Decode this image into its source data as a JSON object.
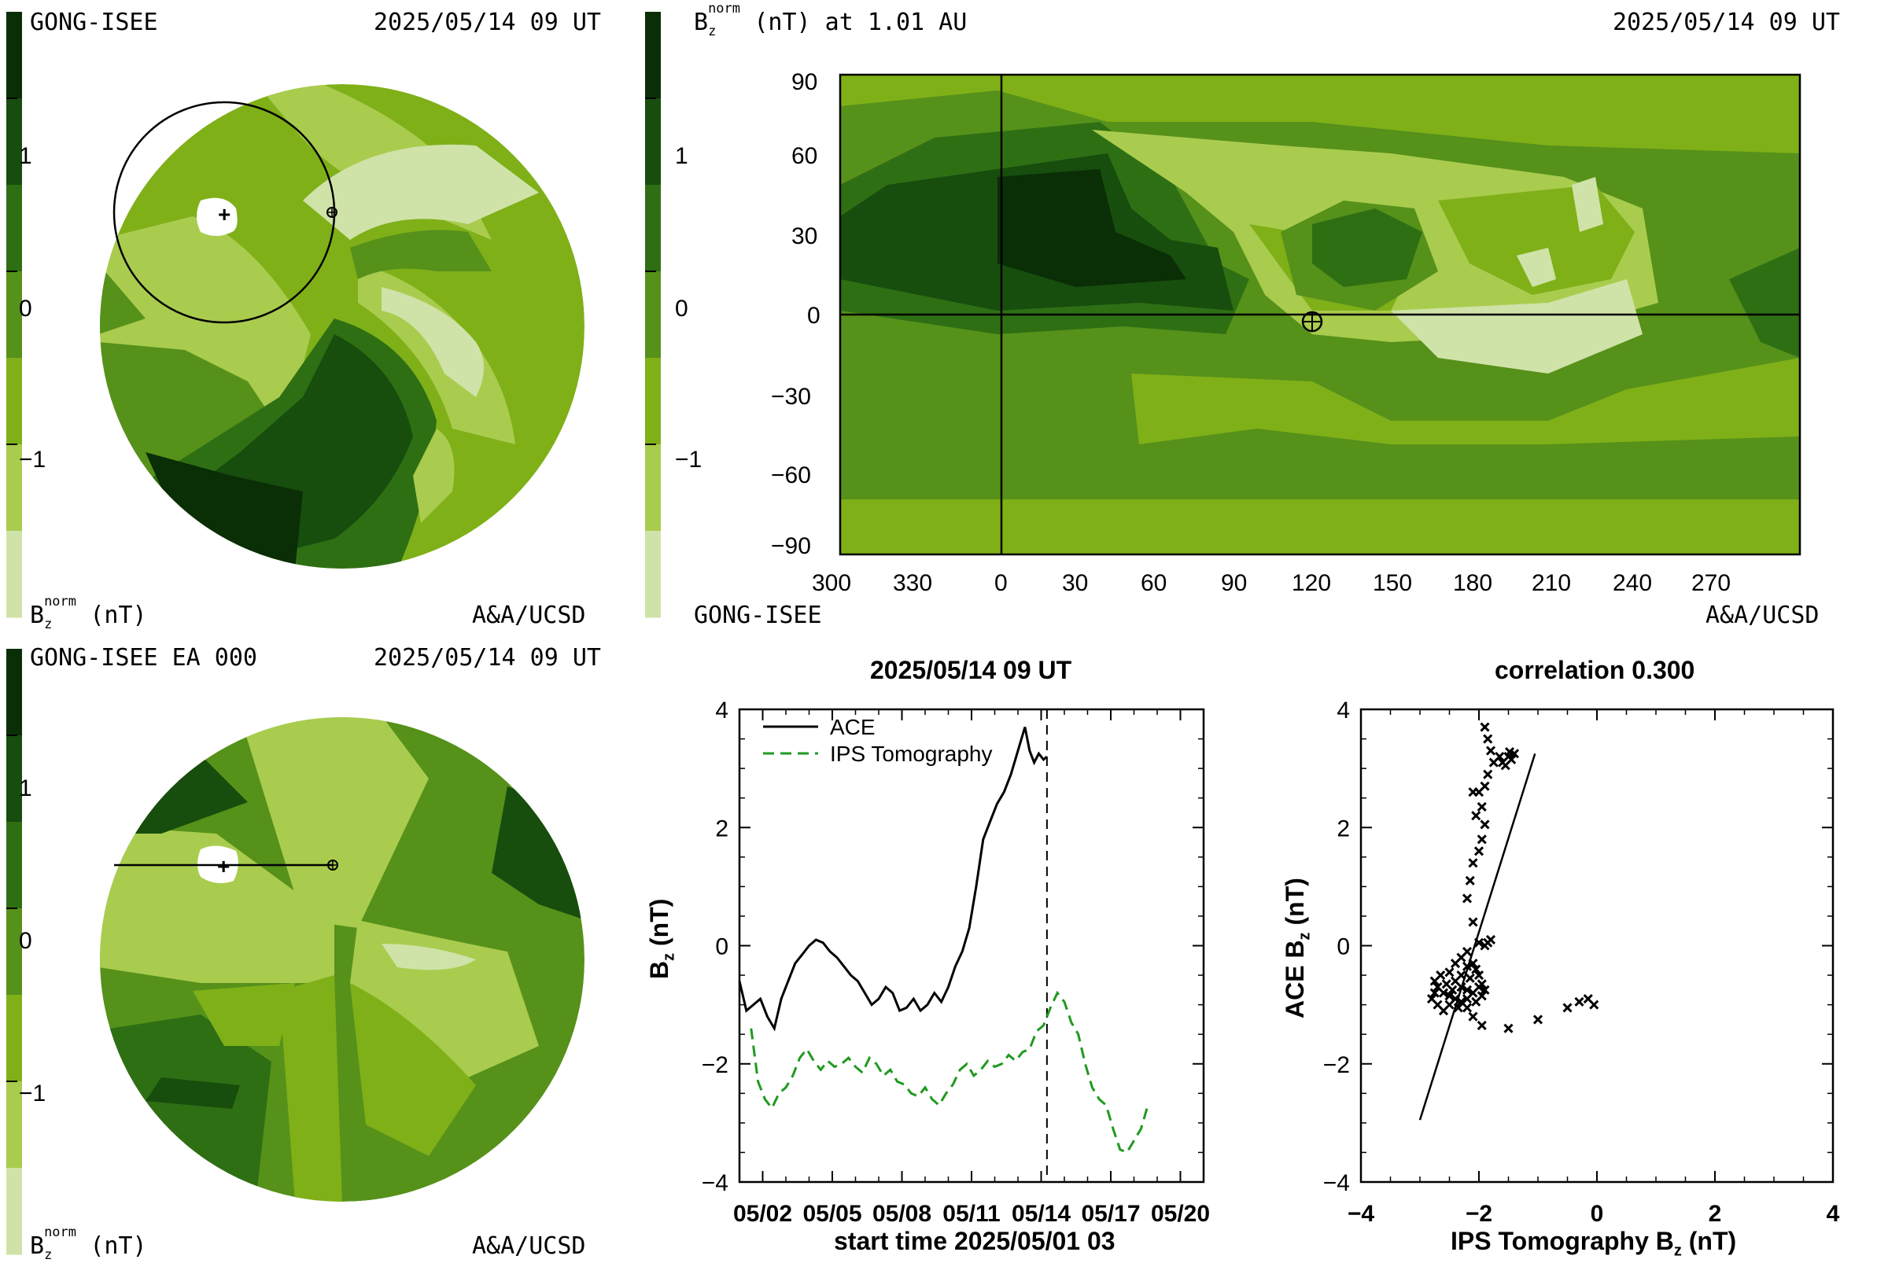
{
  "colors": {
    "levels": [
      "#cfe3a8",
      "#a9cc4e",
      "#7fb018",
      "#56911a",
      "#2f6f14",
      "#174d0d",
      "#0a2e06"
    ],
    "ips_line": "#1f9a1f",
    "ace_line": "#000000"
  },
  "colorbar": {
    "tick_labels": [
      "1",
      "0",
      "−1"
    ]
  },
  "top_left": {
    "source": "GONG-ISEE",
    "datetime": "2025/05/14 09 UT",
    "unit_label_main": "B",
    "unit_label_sub": "z",
    "unit_label_sup": "norm",
    "unit_label_suffix": " (nT)",
    "credit": "A&A/UCSD"
  },
  "bottom_left": {
    "source": "GONG-ISEE EA 000",
    "datetime": "2025/05/14 09 UT",
    "unit_label_main": "B",
    "unit_label_sub": "z",
    "unit_label_sup": "norm",
    "unit_label_suffix": " (nT)",
    "credit": "A&A/UCSD"
  },
  "top_right": {
    "title_main": "B",
    "title_sub": "z",
    "title_sup": "norm",
    "title_suffix": " (nT) at 1.01 AU",
    "datetime": "2025/05/14 09 UT",
    "source": "GONG-ISEE",
    "credit": "A&A/UCSD",
    "y_ticks": [
      "90",
      "60",
      "30",
      "0",
      "−30",
      "−60",
      "−90"
    ],
    "x_ticks": [
      "300",
      "330",
      "0",
      "30",
      "60",
      "90",
      "120",
      "150",
      "180",
      "210",
      "240",
      "270"
    ]
  },
  "chart_data": [
    {
      "type": "line",
      "title": "2025/05/14 09 UT",
      "xlabel": "start time 2025/05/01 03",
      "ylabel_main": "B",
      "ylabel_sub": "z",
      "ylabel_suffix": " (nT)",
      "x_tick_labels": [
        "05/02",
        "05/05",
        "05/08",
        "05/11",
        "05/14",
        "05/17",
        "05/20"
      ],
      "y_tick_labels": [
        "4",
        "2",
        "0",
        "−2",
        "−4"
      ],
      "xlim": [
        0,
        20
      ],
      "ylim": [
        -4,
        4
      ],
      "marker_day": 13.25,
      "series": [
        {
          "name": "ACE",
          "style": "solid",
          "x": [
            0.0,
            0.3,
            0.6,
            0.9,
            1.2,
            1.5,
            1.8,
            2.1,
            2.4,
            2.7,
            3.0,
            3.3,
            3.6,
            3.9,
            4.2,
            4.5,
            4.8,
            5.1,
            5.4,
            5.7,
            6.0,
            6.3,
            6.6,
            6.9,
            7.2,
            7.5,
            7.8,
            8.1,
            8.4,
            8.7,
            9.0,
            9.3,
            9.6,
            9.9,
            10.2,
            10.5,
            10.8,
            11.1,
            11.4,
            11.7,
            12.0,
            12.3,
            12.5,
            12.7,
            12.9,
            13.1,
            13.25
          ],
          "y": [
            -0.6,
            -1.1,
            -1.0,
            -0.9,
            -1.2,
            -1.4,
            -0.9,
            -0.6,
            -0.3,
            -0.15,
            0.0,
            0.1,
            0.05,
            -0.1,
            -0.2,
            -0.35,
            -0.5,
            -0.6,
            -0.8,
            -1.0,
            -0.9,
            -0.7,
            -0.8,
            -1.1,
            -1.05,
            -0.9,
            -1.1,
            -1.0,
            -0.8,
            -0.95,
            -0.7,
            -0.35,
            -0.1,
            0.3,
            1.0,
            1.8,
            2.1,
            2.4,
            2.6,
            2.9,
            3.3,
            3.7,
            3.3,
            3.1,
            3.25,
            3.15,
            3.2
          ]
        },
        {
          "name": "IPS Tomography",
          "style": "dashed",
          "x": [
            0.5,
            0.8,
            1.1,
            1.4,
            1.7,
            2.0,
            2.3,
            2.6,
            2.9,
            3.2,
            3.5,
            3.8,
            4.1,
            4.4,
            4.7,
            5.0,
            5.3,
            5.6,
            5.9,
            6.2,
            6.5,
            6.8,
            7.1,
            7.4,
            7.7,
            8.0,
            8.3,
            8.6,
            8.9,
            9.2,
            9.5,
            9.8,
            10.1,
            10.4,
            10.7,
            11.0,
            11.3,
            11.6,
            11.9,
            12.2,
            12.5,
            12.8,
            13.1,
            13.4,
            13.7,
            14.0,
            14.3,
            14.6,
            14.9,
            15.2,
            15.5,
            15.8,
            16.1,
            16.4,
            16.7,
            17.0,
            17.3,
            17.6
          ],
          "y": [
            -1.4,
            -2.3,
            -2.6,
            -2.75,
            -2.5,
            -2.4,
            -2.2,
            -1.9,
            -1.75,
            -1.95,
            -2.1,
            -1.95,
            -2.05,
            -2.0,
            -1.9,
            -2.05,
            -2.15,
            -1.9,
            -2.0,
            -2.2,
            -2.1,
            -2.3,
            -2.35,
            -2.5,
            -2.55,
            -2.4,
            -2.6,
            -2.7,
            -2.5,
            -2.35,
            -2.1,
            -2.0,
            -2.2,
            -2.1,
            -1.95,
            -2.05,
            -2.0,
            -1.85,
            -1.95,
            -1.8,
            -1.75,
            -1.45,
            -1.35,
            -1.05,
            -0.8,
            -0.95,
            -1.3,
            -1.5,
            -2.0,
            -2.4,
            -2.6,
            -2.7,
            -3.1,
            -3.45,
            -3.5,
            -3.3,
            -3.1,
            -2.7
          ]
        }
      ]
    },
    {
      "type": "scatter",
      "title": "correlation 0.300",
      "xlabel_main": "IPS Tomography B",
      "xlabel_sub": "z",
      "xlabel_suffix": " (nT)",
      "ylabel_main": "ACE B",
      "ylabel_sub": "z",
      "ylabel_suffix": " (nT)",
      "x_tick_labels": [
        "−4",
        "−2",
        "0",
        "2",
        "4"
      ],
      "y_tick_labels": [
        "4",
        "2",
        "0",
        "−2",
        "−4"
      ],
      "xlim": [
        -4,
        4
      ],
      "ylim": [
        -4,
        4
      ],
      "fit_line": [
        [
          -3.0,
          -2.95
        ],
        [
          -1.05,
          3.25
        ]
      ],
      "points": [
        [
          -1.9,
          3.7
        ],
        [
          -1.85,
          3.5
        ],
        [
          -1.8,
          3.3
        ],
        [
          -1.75,
          3.1
        ],
        [
          -1.5,
          3.2
        ],
        [
          -1.45,
          3.15
        ],
        [
          -1.4,
          3.25
        ],
        [
          -1.55,
          3.05
        ],
        [
          -1.6,
          3.1
        ],
        [
          -1.65,
          3.2
        ],
        [
          -1.48,
          3.28
        ],
        [
          -1.85,
          2.9
        ],
        [
          -1.9,
          2.7
        ],
        [
          -2.0,
          2.6
        ],
        [
          -2.1,
          2.6
        ],
        [
          -1.95,
          2.35
        ],
        [
          -2.05,
          2.2
        ],
        [
          -1.9,
          2.05
        ],
        [
          -1.95,
          1.8
        ],
        [
          -2.0,
          1.6
        ],
        [
          -2.1,
          1.4
        ],
        [
          -2.15,
          1.1
        ],
        [
          -2.2,
          0.8
        ],
        [
          -2.1,
          0.4
        ],
        [
          -2.0,
          0.05
        ],
        [
          -1.9,
          0.0
        ],
        [
          -1.85,
          0.05
        ],
        [
          -1.8,
          0.1
        ],
        [
          -2.2,
          -0.1
        ],
        [
          -2.3,
          -0.2
        ],
        [
          -2.4,
          -0.3
        ],
        [
          -2.2,
          -0.35
        ],
        [
          -2.1,
          -0.3
        ],
        [
          -2.05,
          -0.4
        ],
        [
          -2.0,
          -0.5
        ],
        [
          -2.15,
          -0.55
        ],
        [
          -2.3,
          -0.5
        ],
        [
          -2.5,
          -0.45
        ],
        [
          -2.65,
          -0.5
        ],
        [
          -2.75,
          -0.6
        ],
        [
          -2.7,
          -0.7
        ],
        [
          -2.6,
          -0.8
        ],
        [
          -2.5,
          -0.85
        ],
        [
          -2.4,
          -0.9
        ],
        [
          -2.3,
          -0.95
        ],
        [
          -2.2,
          -0.9
        ],
        [
          -2.1,
          -0.8
        ],
        [
          -2.0,
          -0.7
        ],
        [
          -1.95,
          -0.65
        ],
        [
          -1.9,
          -0.75
        ],
        [
          -1.95,
          -0.85
        ],
        [
          -2.05,
          -0.95
        ],
        [
          -2.2,
          -1.05
        ],
        [
          -2.35,
          -1.05
        ],
        [
          -2.5,
          -1.0
        ],
        [
          -2.6,
          -1.1
        ],
        [
          -2.7,
          -1.0
        ],
        [
          -2.8,
          -0.9
        ],
        [
          -2.75,
          -0.8
        ],
        [
          -2.4,
          -0.6
        ],
        [
          -2.3,
          -0.7
        ],
        [
          -2.2,
          -0.75
        ],
        [
          -2.1,
          -1.2
        ],
        [
          -2.45,
          -0.75
        ],
        [
          -2.55,
          -0.65
        ],
        [
          -1.95,
          -1.35
        ],
        [
          -1.5,
          -1.4
        ],
        [
          -1.0,
          -1.25
        ],
        [
          -0.5,
          -1.05
        ],
        [
          -0.3,
          -0.95
        ],
        [
          -0.15,
          -0.9
        ],
        [
          -0.05,
          -1.0
        ]
      ]
    }
  ]
}
